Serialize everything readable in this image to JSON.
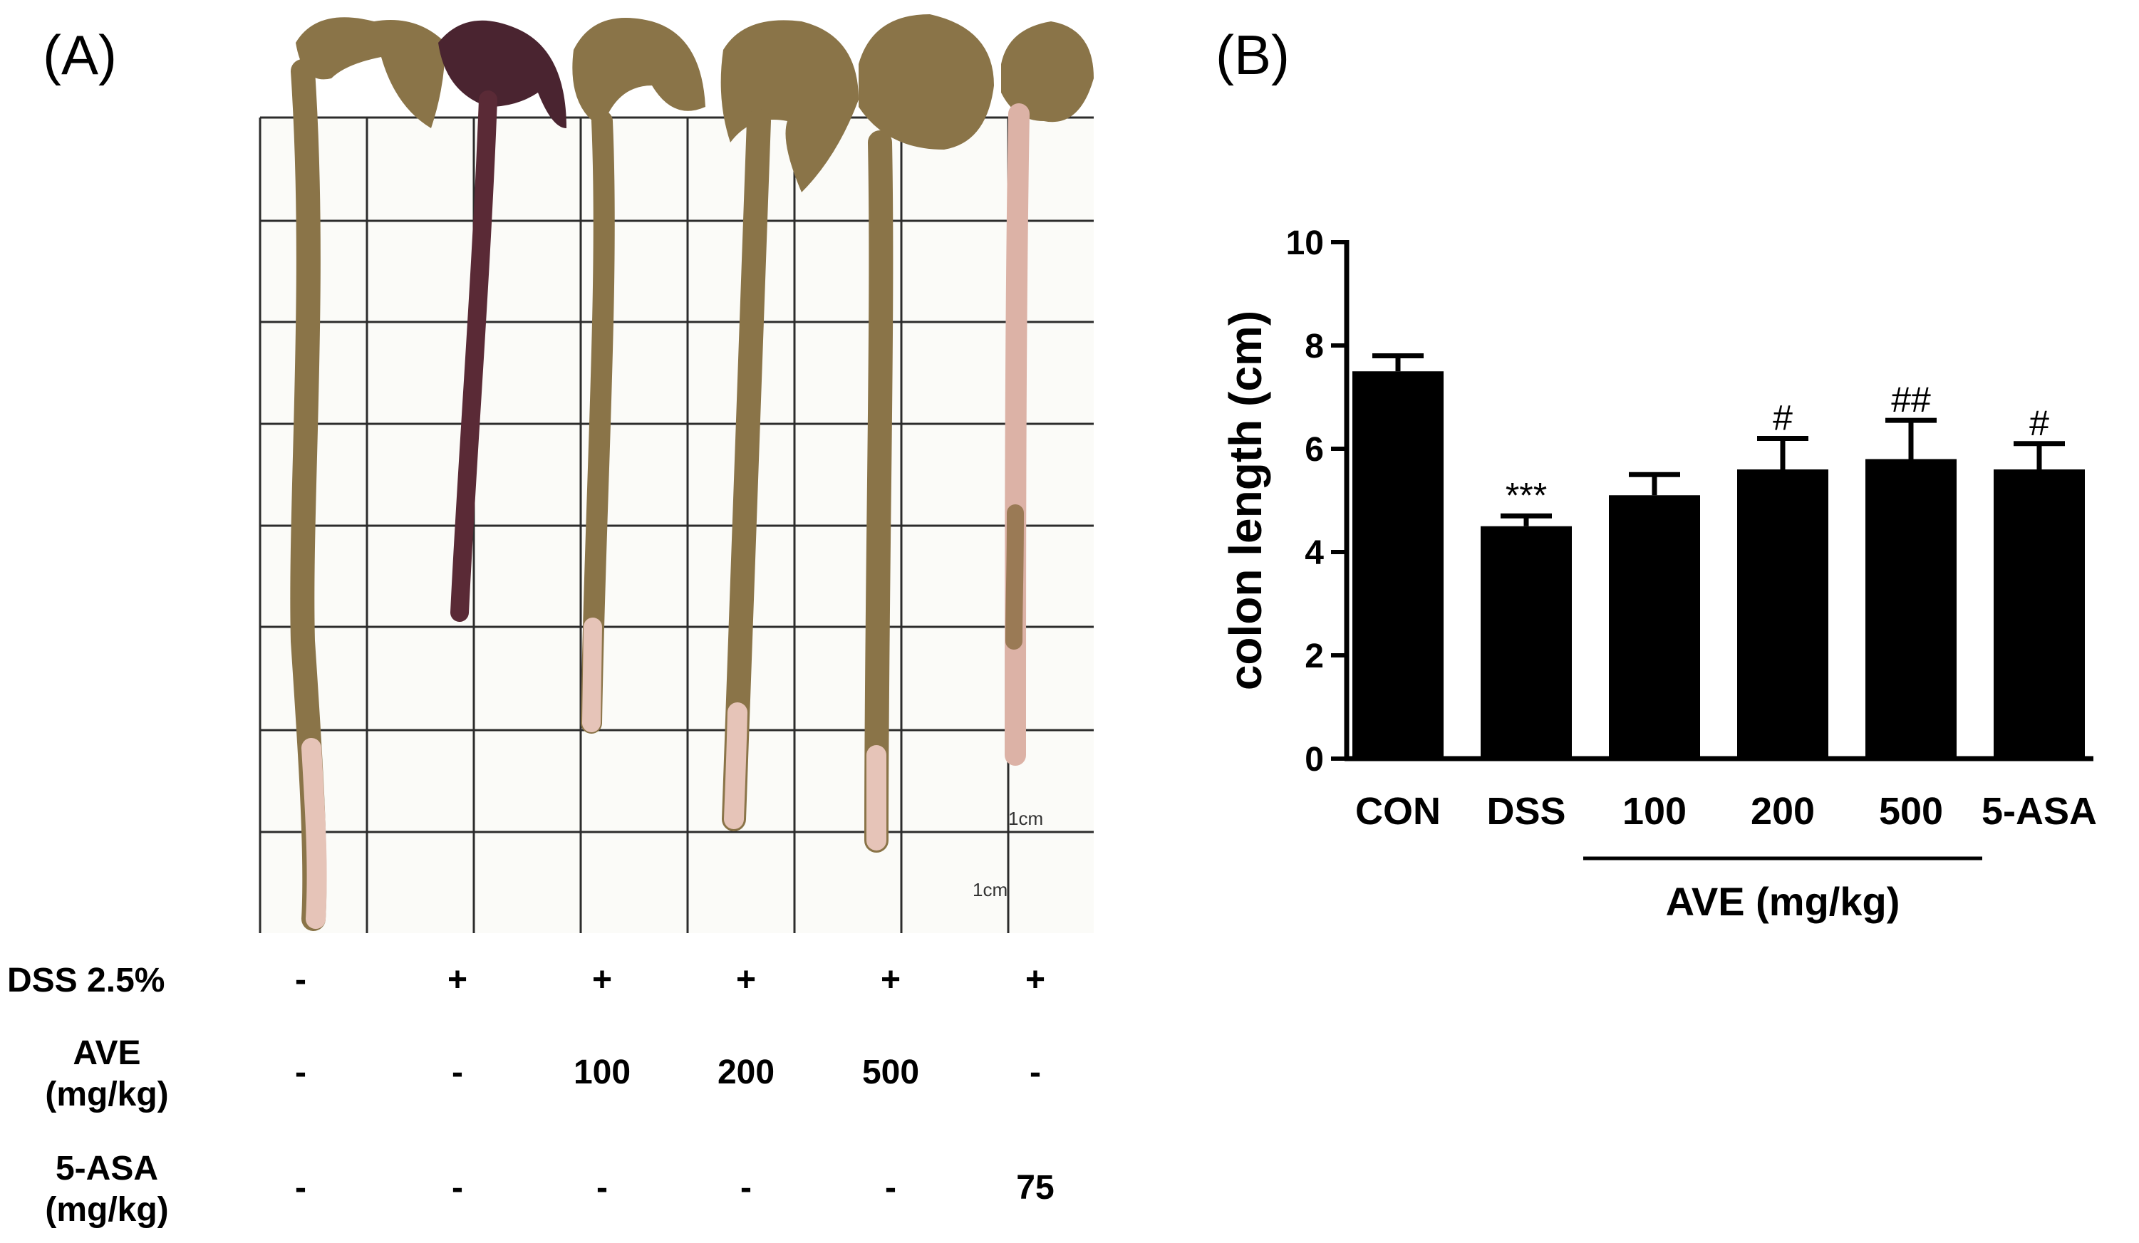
{
  "panels": {
    "a_label": "(A)",
    "b_label": "(B)"
  },
  "photo": {
    "scale_labels": [
      "1cm",
      "1cm"
    ],
    "colons": [
      {
        "group": "CON",
        "tissue_color": "#8a7448"
      },
      {
        "group": "DSS",
        "tissue_color": "#4a2430"
      },
      {
        "group": "AVE 100",
        "tissue_color": "#8a7448"
      },
      {
        "group": "AVE 200",
        "tissue_color": "#8a7448"
      },
      {
        "group": "AVE 500",
        "tissue_color": "#8a7448"
      },
      {
        "group": "5-ASA",
        "tissue_color": "#8a7448"
      }
    ]
  },
  "treatment_table": {
    "rows": [
      {
        "label": "DSS 2.5%",
        "cells": [
          "-",
          "+",
          "+",
          "+",
          "+",
          "+"
        ]
      },
      {
        "label_line1": "AVE",
        "label_line2": "(mg/kg)",
        "cells": [
          "-",
          "-",
          "100",
          "200",
          "500",
          "-"
        ]
      },
      {
        "label_line1": "5-ASA",
        "label_line2": "(mg/kg)",
        "cells": [
          "-",
          "-",
          "-",
          "-",
          "-",
          "75"
        ]
      }
    ]
  },
  "chart_data": {
    "type": "bar",
    "title": "",
    "categories": [
      "CON",
      "DSS",
      "100",
      "200",
      "500",
      "5-ASA"
    ],
    "values": [
      7.5,
      4.5,
      5.1,
      5.6,
      5.8,
      5.6
    ],
    "errors": [
      0.3,
      0.2,
      0.4,
      0.6,
      0.75,
      0.5
    ],
    "significance": [
      "",
      "***",
      "",
      "#",
      "##",
      "#"
    ],
    "xlabel": "",
    "ylabel": "colon length (cm)",
    "ylim": [
      0,
      10
    ],
    "yticks": [
      "0",
      "2",
      "4",
      "6",
      "8",
      "10"
    ],
    "group_label": "AVE (mg/kg)",
    "group_span": [
      "100",
      "500"
    ],
    "bar_color": "#000000"
  }
}
